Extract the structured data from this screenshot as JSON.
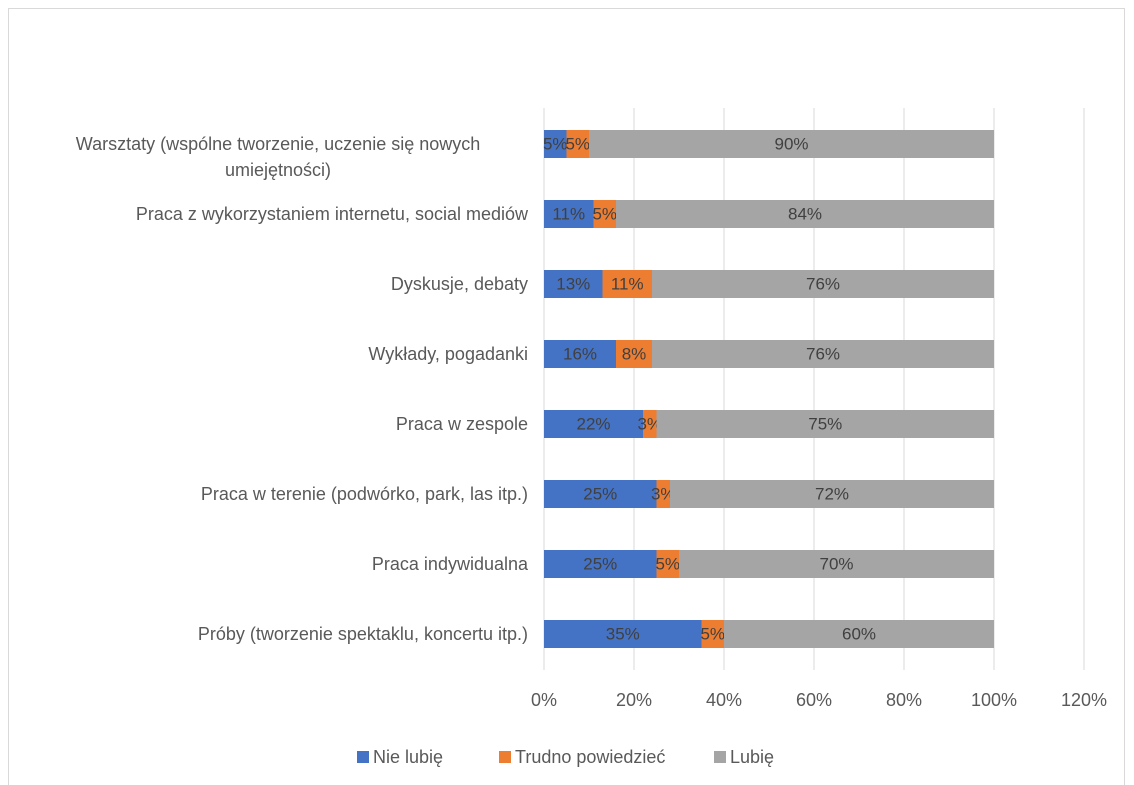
{
  "chart_data": {
    "type": "stacked-bar-horizontal",
    "categories": [
      "Warsztaty (wspólne tworzenie, uczenie się nowych umiejętności)",
      "Praca z wykorzystaniem internetu, social mediów",
      "Dyskusje, debaty",
      "Wykłady, pogadanki",
      "Praca w zespole",
      "Praca w terenie (podwórko, park, las itp.)",
      "Praca indywidualna",
      "Próby (tworzenie spektaklu, koncertu itp.)"
    ],
    "series": [
      {
        "name": "Nie lubię",
        "color": "#4472c4",
        "values": [
          5,
          11,
          13,
          16,
          22,
          25,
          25,
          35
        ],
        "value_labels": [
          "5%",
          "11%",
          "13%",
          "16%",
          "22%",
          "25%",
          "25%",
          "35%"
        ]
      },
      {
        "name": "Trudno powiedzieć",
        "color": "#ed7d31",
        "values": [
          5,
          5,
          11,
          8,
          3,
          3,
          5,
          5
        ],
        "value_labels": [
          "5%",
          "5%",
          "11%",
          "8%",
          "3%",
          "3%",
          "5%",
          "5%"
        ]
      },
      {
        "name": "Lubię",
        "color": "#a5a5a5",
        "values": [
          90,
          84,
          76,
          76,
          75,
          72,
          70,
          60
        ],
        "value_labels": [
          "90%",
          "84%",
          "76%",
          "76%",
          "75%",
          "72%",
          "70%",
          "60%"
        ]
      }
    ],
    "xlim": [
      0,
      120
    ],
    "xticks": [
      {
        "value": 0,
        "label": "0%"
      },
      {
        "value": 20,
        "label": "20%"
      },
      {
        "value": 40,
        "label": "40%"
      },
      {
        "value": 60,
        "label": "60%"
      },
      {
        "value": 80,
        "label": "80%"
      },
      {
        "value": 100,
        "label": "100%"
      },
      {
        "value": 120,
        "label": "120%"
      }
    ],
    "grid": true,
    "legend": "bottom"
  }
}
